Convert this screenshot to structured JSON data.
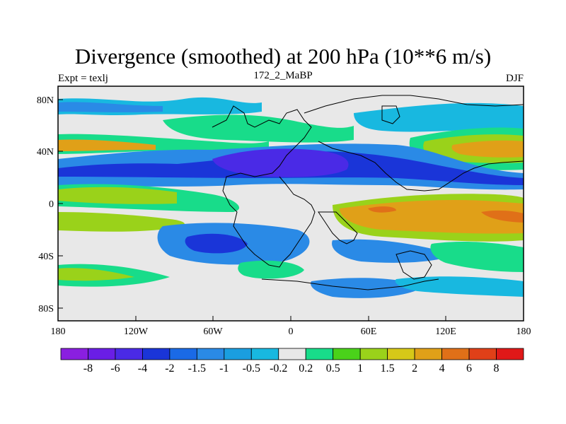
{
  "title": "Divergence (smoothed) at 200 hPa (10**6 m/s)",
  "subtitle_left": "Expt = texlj",
  "subtitle_center": "172_2_MaBP",
  "subtitle_right": "DJF",
  "x_ticks": [
    "180",
    "120W",
    "60W",
    "0",
    "60E",
    "120E",
    "180"
  ],
  "y_ticks": [
    "80N",
    "40N",
    "0",
    "40S",
    "80S"
  ],
  "colorbar": {
    "labels": [
      "-8",
      "-6",
      "-4",
      "-2",
      "-1.5",
      "-1",
      "-0.5",
      "-0.2",
      "0.2",
      "0.5",
      "1",
      "1.5",
      "2",
      "4",
      "6",
      "8"
    ],
    "colors": [
      "#8a1fe0",
      "#6a1ee6",
      "#4a2ae6",
      "#1a35d8",
      "#1a6ae6",
      "#2a8ae6",
      "#1a9ee0",
      "#18b8e0",
      "#e8e8e8",
      "#18dc8a",
      "#4ad21a",
      "#9ad21a",
      "#d6c818",
      "#e0a018",
      "#e07018",
      "#e04018",
      "#e01818"
    ]
  },
  "palette": {
    "background": "#e8e8e8",
    "land_outline": "#000000"
  }
}
